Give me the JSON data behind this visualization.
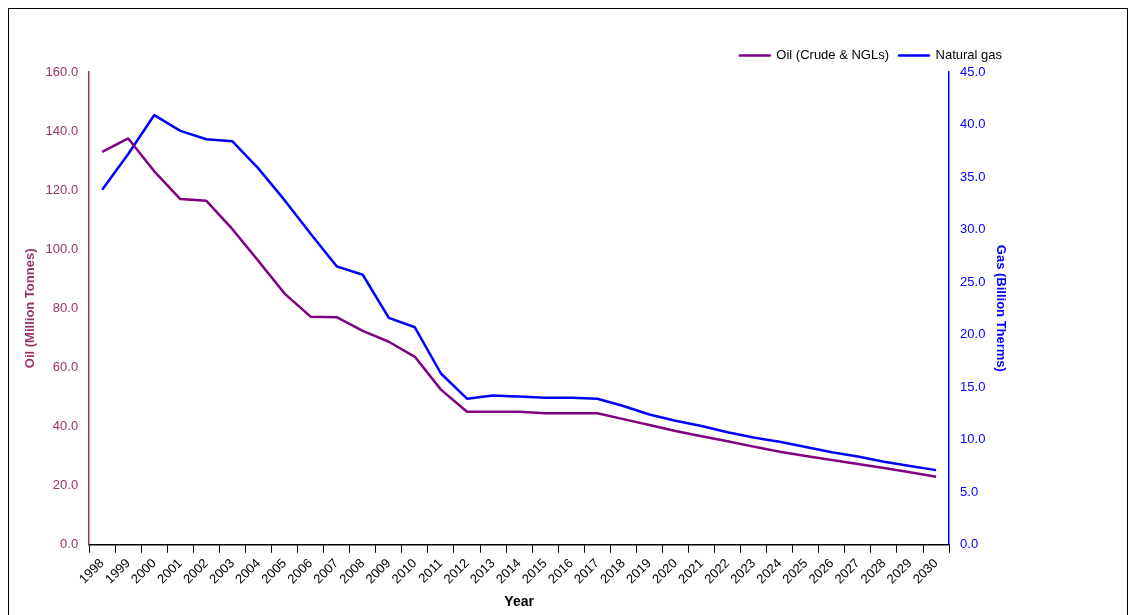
{
  "chart_data": {
    "type": "line",
    "xlabel": "Year",
    "ylabel": "Oil (Million Tonnes)",
    "y2label": "Gas (Billion Therms)",
    "categories": [
      "1998",
      "1999",
      "2000",
      "2001",
      "2002",
      "2003",
      "2004",
      "2005",
      "2006",
      "2007",
      "2008",
      "2009",
      "2010",
      "2011",
      "2012",
      "2013",
      "2014",
      "2015",
      "2016",
      "2017",
      "2018",
      "2019",
      "2020",
      "2021",
      "2022",
      "2023",
      "2024",
      "2025",
      "2026",
      "2027",
      "2028",
      "2029",
      "2030"
    ],
    "series": [
      {
        "name": "Oil (Crude & NGLs)",
        "color": "#800080",
        "values": [
          133,
          137.5,
          126.4,
          117,
          116.4,
          106.8,
          96,
          85,
          77.2,
          77,
          72.4,
          68.7,
          63.6,
          52.5,
          45,
          45,
          45,
          44.5,
          44.5,
          44.5,
          42.5,
          40.5,
          38.5,
          36.7,
          35,
          33.2,
          31.5,
          30,
          28.7,
          27.3,
          26,
          24.5,
          23
        ]
      },
      {
        "name": "Natural gas",
        "color": "#0000ff",
        "axis": "y2",
        "values": [
          33.8,
          37.2,
          40.9,
          39.4,
          38.6,
          38.4,
          35.8,
          32.8,
          29.6,
          26.5,
          25.7,
          21.6,
          20.7,
          16.3,
          13.9,
          14.2,
          14.1,
          14,
          14,
          13.9,
          13.2,
          12.4,
          11.8,
          11.3,
          10.7,
          10.2,
          9.8,
          9.3,
          8.8,
          8.4,
          7.9,
          7.5,
          7.1
        ]
      }
    ],
    "ylim": [
      0,
      160
    ],
    "yticks": [
      {
        "value": 0,
        "label": "0.0"
      },
      {
        "value": 20,
        "label": "20.0"
      },
      {
        "value": 40,
        "label": "40.0"
      },
      {
        "value": 60,
        "label": "60.0"
      },
      {
        "value": 80,
        "label": "80.0"
      },
      {
        "value": 100,
        "label": "100.0"
      },
      {
        "value": 120,
        "label": "120.0"
      },
      {
        "value": 140,
        "label": "140.0"
      },
      {
        "value": 160,
        "label": "160.0"
      }
    ],
    "y2lim": [
      0,
      45
    ],
    "y2ticks": [
      {
        "value": 0,
        "label": "0.0"
      },
      {
        "value": 5,
        "label": "5.0"
      },
      {
        "value": 10,
        "label": "10.0"
      },
      {
        "value": 15,
        "label": "15.0"
      },
      {
        "value": 20,
        "label": "20.0"
      },
      {
        "value": 25,
        "label": "25.0"
      },
      {
        "value": 30,
        "label": "30.0"
      },
      {
        "value": 35,
        "label": "35.0"
      },
      {
        "value": 40,
        "label": "40.0"
      },
      {
        "value": 45,
        "label": "45.0"
      }
    ],
    "grid": false,
    "legend": "top right",
    "marker": "none",
    "line_style": "solid"
  }
}
